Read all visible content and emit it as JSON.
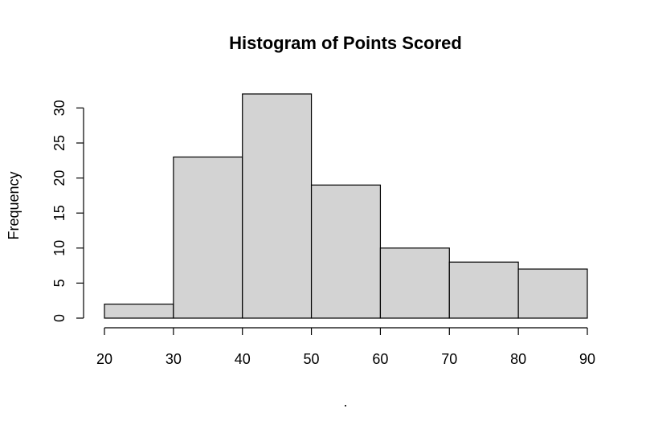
{
  "chart_data": {
    "type": "bar",
    "title": "Histogram of Points Scored",
    "xlabel": ".",
    "ylabel": "Frequency",
    "bins": [
      {
        "start": 20,
        "end": 30,
        "count": 2
      },
      {
        "start": 30,
        "end": 40,
        "count": 23
      },
      {
        "start": 40,
        "end": 50,
        "count": 32
      },
      {
        "start": 50,
        "end": 60,
        "count": 19
      },
      {
        "start": 60,
        "end": 70,
        "count": 10
      },
      {
        "start": 70,
        "end": 80,
        "count": 8
      },
      {
        "start": 80,
        "end": 90,
        "count": 7
      }
    ],
    "xlim": [
      20,
      90
    ],
    "ylim": [
      0,
      32
    ],
    "x_ticks": [
      "20",
      "30",
      "40",
      "50",
      "60",
      "70",
      "80",
      "90"
    ],
    "y_ticks": [
      "0",
      "5",
      "10",
      "15",
      "20",
      "25",
      "30"
    ],
    "grid": false,
    "bar_color": "#d3d3d3",
    "edge_color": "#000000"
  }
}
